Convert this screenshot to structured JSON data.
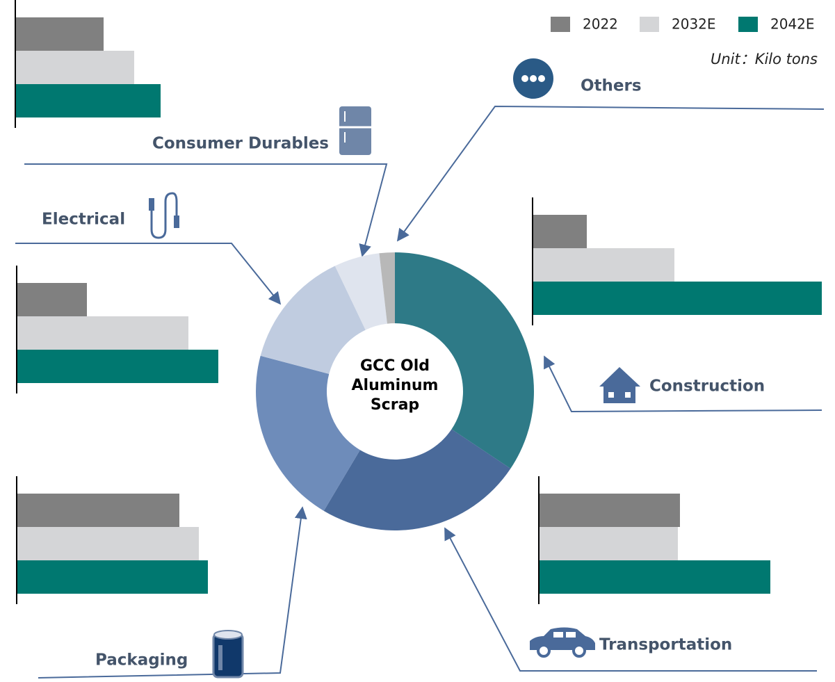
{
  "chart_data": {
    "type": "donut",
    "center_label": "GCC Old Aluminum Scrap",
    "unit_note": "Unit：Kilo tons",
    "categories": [
      "Construction",
      "Transportation",
      "Packaging",
      "Electrical",
      "Consumer Durables",
      "Others"
    ],
    "values": [
      34.4,
      24.2,
      20.6,
      13.8,
      5.3,
      1.8
    ],
    "colors": [
      "#2e7a87",
      "#4a6a9a",
      "#6e8cba",
      "#c0cce0",
      "#dfe4ee",
      "#b8b8b8"
    ],
    "xlim": [
      0,
      420
    ],
    "series": [
      {
        "name": "2022",
        "color": "#808080",
        "values": [
          78,
          203,
          234,
          101,
          127,
          null
        ]
      },
      {
        "name": "2032E",
        "color": "#d4d5d7",
        "values": [
          204,
          200,
          262,
          247,
          171,
          null
        ]
      },
      {
        "name": "2042E",
        "color": "#007870",
        "values": [
          416,
          333,
          275,
          290,
          209,
          null
        ]
      }
    ]
  }
}
